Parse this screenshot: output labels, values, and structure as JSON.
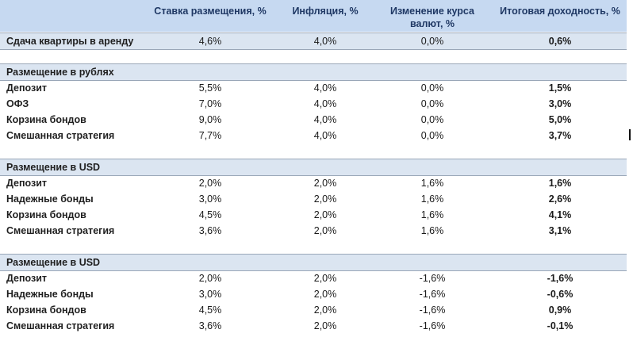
{
  "header": {
    "col1": "Ставка размещения, %",
    "col2": "Инфляция, %",
    "col3_line1": "Изменение курса",
    "col3_line2": "валют, %",
    "col4": "Итоговая доходность, %"
  },
  "top_row": {
    "label": "Сдача квартиры в аренду",
    "rate": "4,6%",
    "inflation": "4,0%",
    "fx": "0,0%",
    "total": "0,6%"
  },
  "sections": [
    {
      "title": "Размещение в рублях",
      "rows": [
        {
          "label": "Депозит",
          "rate": "5,5%",
          "inflation": "4,0%",
          "fx": "0,0%",
          "total": "1,5%"
        },
        {
          "label": "ОФЗ",
          "rate": "7,0%",
          "inflation": "4,0%",
          "fx": "0,0%",
          "total": "3,0%"
        },
        {
          "label": "Корзина бондов",
          "rate": "9,0%",
          "inflation": "4,0%",
          "fx": "0,0%",
          "total": "5,0%"
        },
        {
          "label": "Смешанная стратегия",
          "rate": "7,7%",
          "inflation": "4,0%",
          "fx": "0,0%",
          "total": "3,7%"
        }
      ]
    },
    {
      "title": "Размещение в USD",
      "rows": [
        {
          "label": "Депозит",
          "rate": "2,0%",
          "inflation": "2,0%",
          "fx": "1,6%",
          "total": "1,6%"
        },
        {
          "label": "Надежные бонды",
          "rate": "3,0%",
          "inflation": "2,0%",
          "fx": "1,6%",
          "total": "2,6%"
        },
        {
          "label": "Корзина бондов",
          "rate": "4,5%",
          "inflation": "2,0%",
          "fx": "1,6%",
          "total": "4,1%"
        },
        {
          "label": "Смешанная стратегия",
          "rate": "3,6%",
          "inflation": "2,0%",
          "fx": "1,6%",
          "total": "3,1%"
        }
      ]
    },
    {
      "title": "Размещение в USD",
      "rows": [
        {
          "label": "Депозит",
          "rate": "2,0%",
          "inflation": "2,0%",
          "fx": "-1,6%",
          "total": "-1,6%"
        },
        {
          "label": "Надежные бонды",
          "rate": "3,0%",
          "inflation": "2,0%",
          "fx": "-1,6%",
          "total": "-0,6%"
        },
        {
          "label": "Корзина бондов",
          "rate": "4,5%",
          "inflation": "2,0%",
          "fx": "-1,6%",
          "total": "0,9%"
        },
        {
          "label": "Смешанная стратегия",
          "rate": "3,6%",
          "inflation": "2,0%",
          "fx": "-1,6%",
          "total": "-0,1%"
        }
      ]
    }
  ],
  "colors": {
    "header_bg": "#c6d9f1",
    "section_bg": "#dbe5f1",
    "header_text": "#1f3864"
  }
}
